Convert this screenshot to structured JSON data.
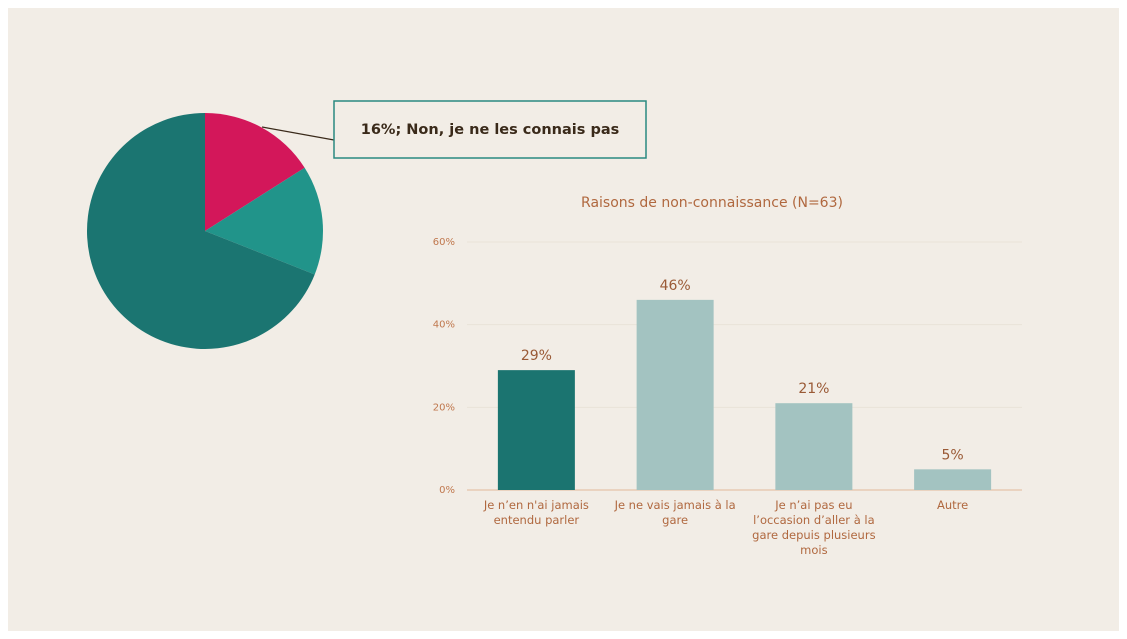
{
  "chart_data": [
    {
      "type": "pie",
      "categories": [
        "Non, je ne les connais pas",
        null,
        null
      ],
      "values": [
        16,
        15,
        69
      ],
      "value_labels": [
        "16%; Non, je ne les connais pas",
        null,
        null
      ],
      "colors": [
        "#d3175a",
        "#21948a",
        "#1b7571"
      ]
    },
    {
      "type": "bar",
      "title": "Raisons de non-connaissance (N=63)",
      "categories": [
        "Je n’en n'ai jamais entendu parler",
        "Je ne vais jamais à la gare",
        "Je n’ai pas eu l’occasion d’aller à la gare depuis plusieurs mois",
        "Autre"
      ],
      "values": [
        29,
        46,
        21,
        5
      ],
      "value_labels": [
        "29%",
        "46%",
        "21%",
        "5%"
      ],
      "colors": [
        "#1b7470",
        "#a3c3c1",
        "#a3c3c1",
        "#a3c3c1"
      ],
      "ylim": [
        0,
        60
      ],
      "yticks": [
        {
          "value": 0,
          "label": "0%"
        },
        {
          "value": 20,
          "label": "20%"
        },
        {
          "value": 40,
          "label": "40%"
        },
        {
          "value": 60,
          "label": "60%"
        }
      ],
      "grid": true
    }
  ]
}
